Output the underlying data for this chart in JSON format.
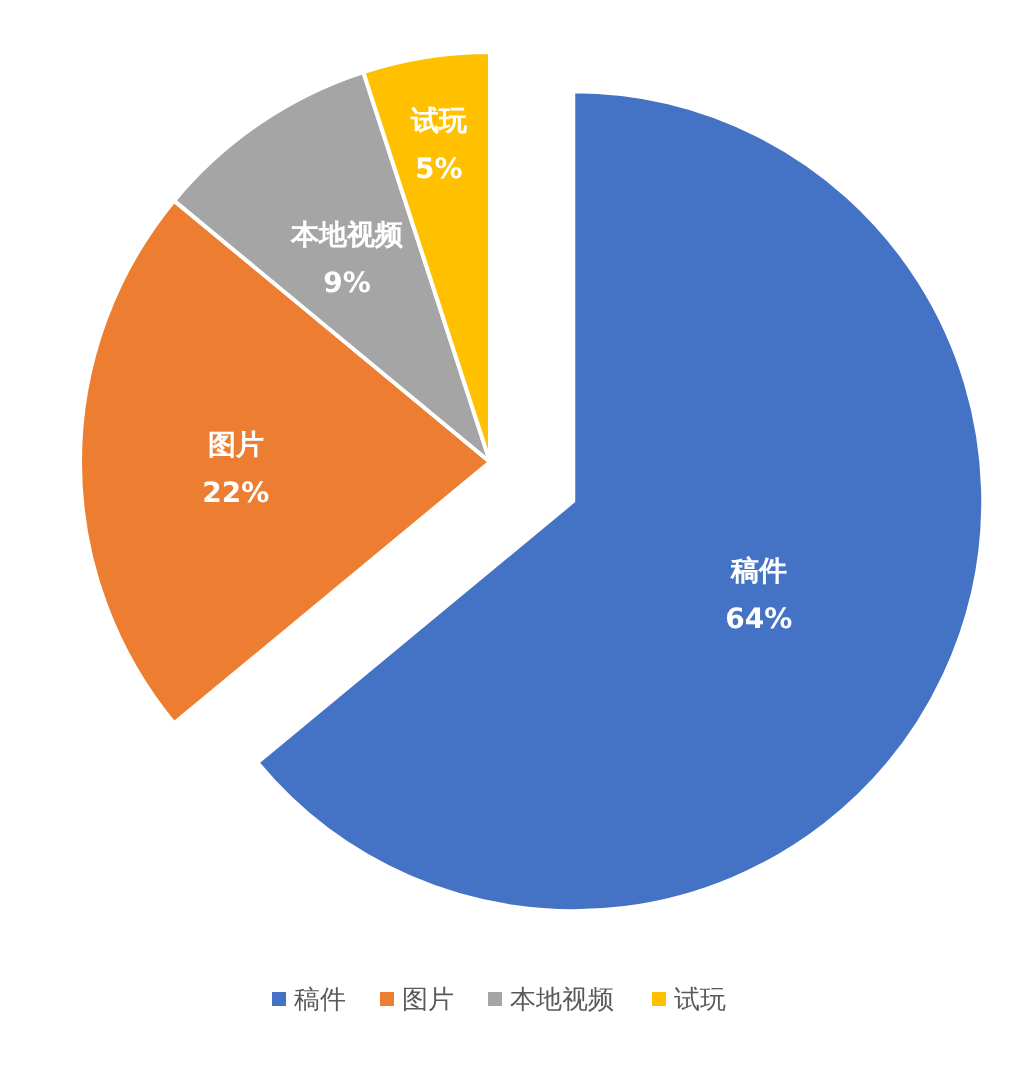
{
  "chart_data": {
    "type": "pie",
    "categories": [
      "稿件",
      "图片",
      "本地视频",
      "试玩"
    ],
    "values": [
      64,
      22,
      9,
      5
    ],
    "colors": [
      "#4472c4",
      "#ed7d31",
      "#a5a5a5",
      "#ffc000"
    ],
    "value_labels": [
      "64%",
      "22%",
      "9%",
      "5%"
    ],
    "legend": "bottom"
  }
}
